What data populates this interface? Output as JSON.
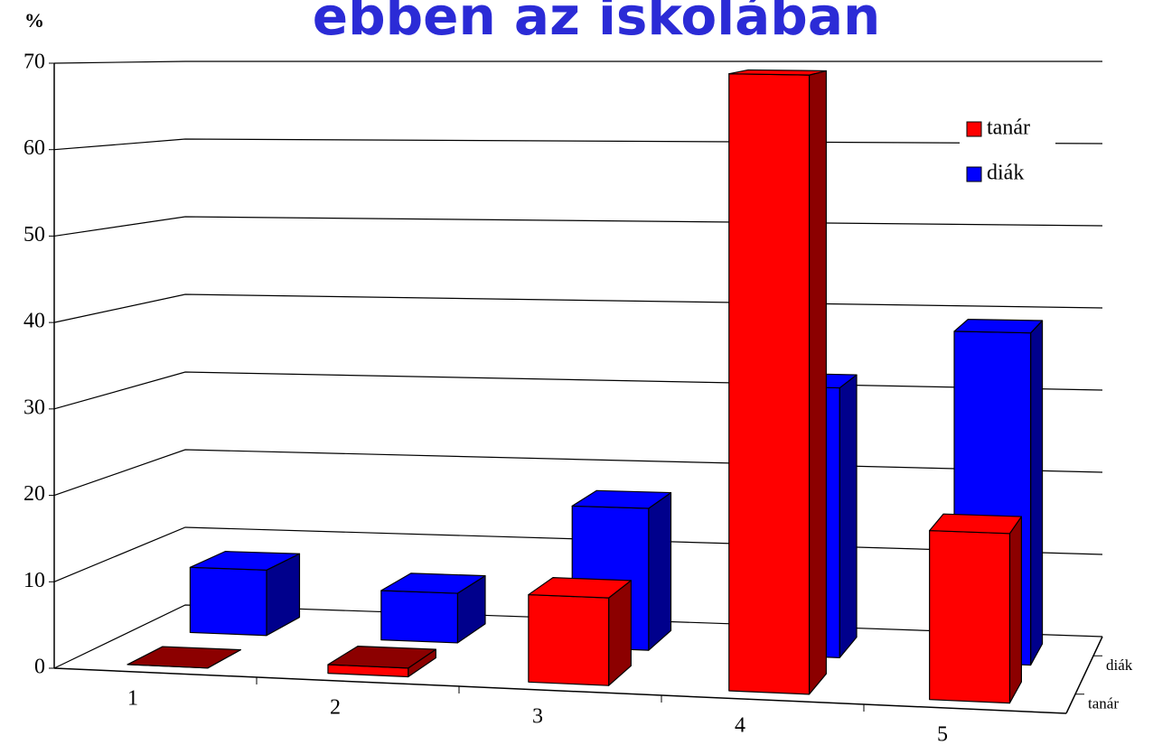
{
  "chart_data": {
    "type": "bar3d",
    "title": "ebben az iskolában",
    "y_label": "%",
    "categories": [
      "1",
      "2",
      "3",
      "4",
      "5"
    ],
    "series": [
      {
        "name": "tanár",
        "color": "#ff0000",
        "values": [
          0,
          1,
          10,
          70,
          19
        ]
      },
      {
        "name": "diák",
        "color": "#0000ff",
        "values": [
          8,
          6,
          17,
          32,
          39
        ]
      }
    ],
    "ylim": [
      0,
      70
    ],
    "yticks": [
      0,
      10,
      20,
      30,
      40,
      50,
      60,
      70
    ],
    "grid": true,
    "legend": "upper right"
  }
}
